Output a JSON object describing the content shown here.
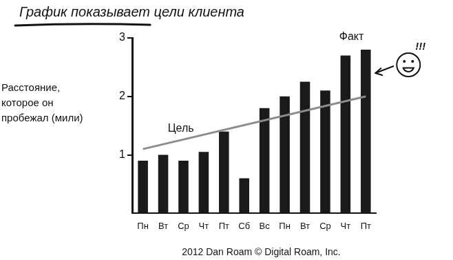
{
  "chart_data": {
    "type": "bar",
    "title": "График показывает цели клиента",
    "y_label": [
      "Расстояние,",
      "которое он",
      "пробежал (мили)"
    ],
    "categories": [
      "Пн",
      "Вт",
      "Ср",
      "Чт",
      "Пт",
      "Сб",
      "Вс",
      "Пн",
      "Вт",
      "Ср",
      "Чт",
      "Пт"
    ],
    "series": [
      {
        "name": "Факт",
        "type": "bar",
        "color": "#1a1a1a",
        "values": [
          0.9,
          1.0,
          0.9,
          1.05,
          1.4,
          0.6,
          1.8,
          2.0,
          2.25,
          2.1,
          2.7,
          2.8
        ]
      },
      {
        "name": "Цель",
        "type": "line",
        "color": "#8c8c8c",
        "values": [
          1.1,
          null,
          null,
          null,
          null,
          null,
          null,
          null,
          null,
          null,
          null,
          2.0
        ]
      }
    ],
    "ylim": [
      0,
      3
    ],
    "yticks": [
      1,
      2,
      3
    ],
    "grid": false,
    "annotations": [
      "!!!"
    ],
    "source": "2012 Dan Roam © Digital Roam, Inc."
  }
}
